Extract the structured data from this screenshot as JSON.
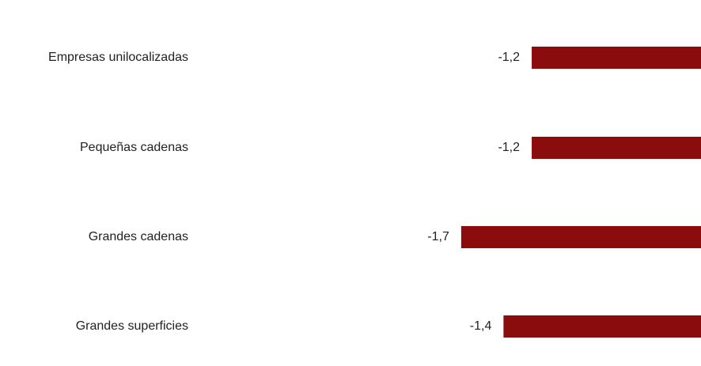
{
  "chart_data": {
    "type": "bar",
    "orientation": "horizontal",
    "categories": [
      "Empresas unilocalizadas",
      "Pequeñas cadenas",
      "Grandes cadenas",
      "Grandes superficies"
    ],
    "values": [
      -1.2,
      -1.2,
      -1.7,
      -1.4
    ],
    "value_labels": [
      "-1,2",
      "-1,2",
      "-1,7",
      "-1,4"
    ],
    "title": "",
    "xlabel": "",
    "ylabel": "",
    "xlim": [
      -1.7,
      0
    ],
    "grid": false,
    "legend": "none",
    "bar_color": "#8b0c0c"
  }
}
